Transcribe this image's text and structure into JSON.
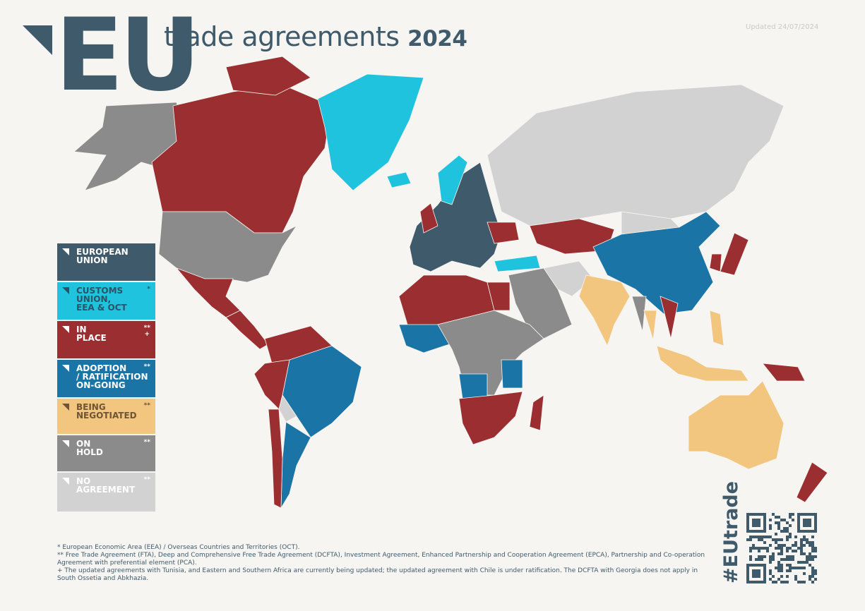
{
  "header": {
    "logo": "EU",
    "title": "trade agreements",
    "year": "2024",
    "updated": "Updated 24/07/2024"
  },
  "legend": [
    {
      "lines": [
        "EUROPEAN",
        "UNION"
      ],
      "notes": [],
      "color": "#3e5a6b",
      "text_color": "#ffffff"
    },
    {
      "lines": [
        "CUSTOMS",
        "UNION,",
        "EEA & OCT"
      ],
      "notes": [
        "*"
      ],
      "color": "#20c3dd",
      "text_color": "#2b5266"
    },
    {
      "lines": [
        "IN",
        "PLACE"
      ],
      "notes": [
        "**",
        "+"
      ],
      "color": "#9a2e31",
      "text_color": "#ffffff"
    },
    {
      "lines": [
        "ADOPTION",
        "/ RATIFICATION",
        "ON-GOING"
      ],
      "notes": [
        "**"
      ],
      "color": "#1b74a6",
      "text_color": "#ffffff"
    },
    {
      "lines": [
        "BEING",
        "NEGOTIATED"
      ],
      "notes": [
        "**"
      ],
      "color": "#f2c67f",
      "text_color": "#6e5533"
    },
    {
      "lines": [
        "ON",
        "HOLD"
      ],
      "notes": [
        "**"
      ],
      "color": "#8b8b8b",
      "text_color": "#ffffff"
    },
    {
      "lines": [
        "NO",
        "AGREEMENT"
      ],
      "notes": [
        "**"
      ],
      "color": "#d2d2d2",
      "text_color": "#ffffff"
    }
  ],
  "footnotes": [
    "* European Economic Area (EEA) / Overseas Countries and Territories (OCT).",
    "** Free Trade Agreement (FTA), Deep and Comprehensive Free Trade Agreement (DCFTA), Investment Agreement, Enhanced Partnership and Cooperation Agreement (EPCA), Partnership and Co-operation Agreement with preferential element (PCA).",
    "+ The updated agreements with Tunisia, and Eastern and Southern Africa are currently being updated; the updated agreement with Chile is under ratification. The DCFTA with Georgia does not apply in South Ossetia and Abkhazia."
  ],
  "hashtag": "#EUtrade"
}
